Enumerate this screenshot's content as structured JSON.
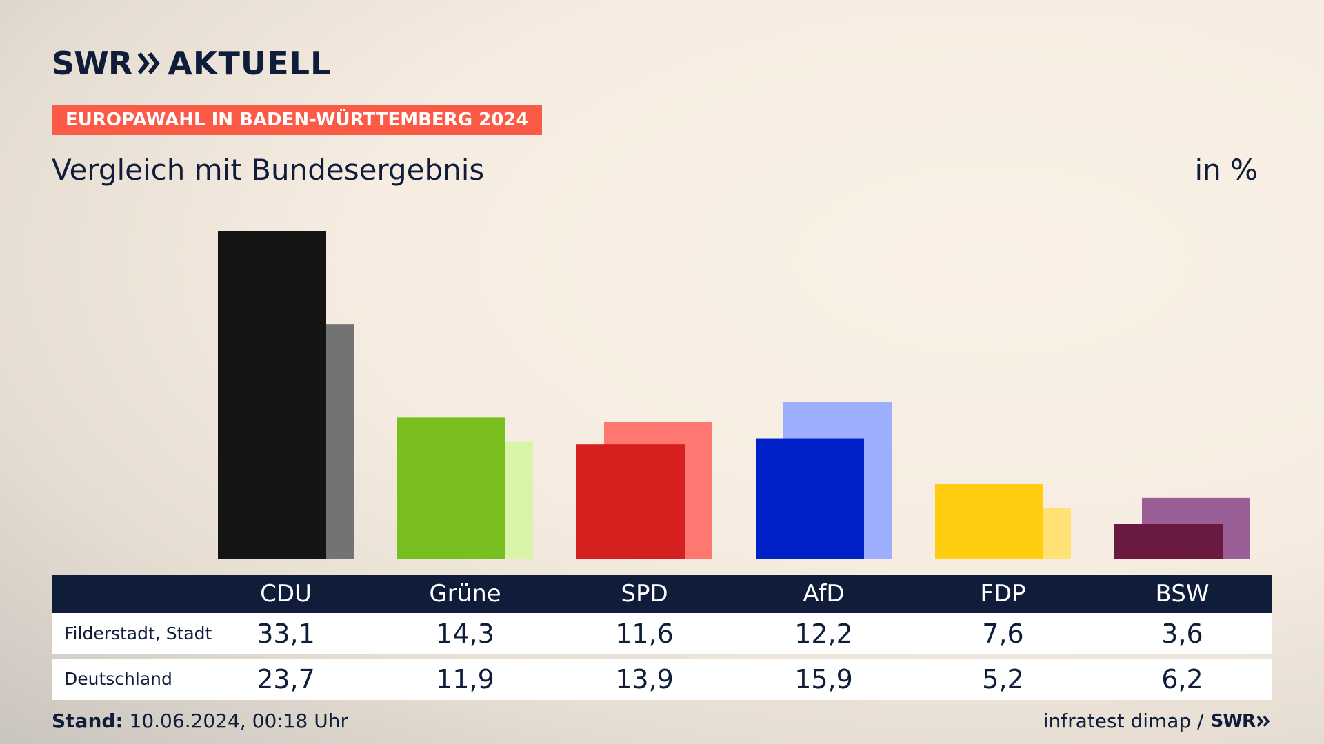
{
  "header": {
    "logo_swr": "SWR",
    "logo_aktuell": "AKTUELL",
    "badge": "EUROPAWAHL IN BADEN-WÜRTTEMBERG 2024",
    "subtitle": "Vergleich mit Bundesergebnis",
    "unit": "in %"
  },
  "table": {
    "row1_label": "Filderstadt, Stadt",
    "row2_label": "Deutschland"
  },
  "footer": {
    "stand_label": "Stand:",
    "stand_value": "10.06.2024, 00:18 Uhr",
    "source": "infratest dimap /",
    "source_logo": "SWR"
  },
  "chart_data": {
    "type": "bar",
    "categories": [
      "CDU",
      "Grüne",
      "SPD",
      "AfD",
      "FDP",
      "BSW"
    ],
    "series": [
      {
        "name": "Filderstadt, Stadt",
        "values": [
          33.1,
          14.3,
          11.6,
          12.2,
          7.6,
          3.6
        ],
        "labels": [
          "33,1",
          "14,3",
          "11,6",
          "12,2",
          "7,6",
          "3,6"
        ]
      },
      {
        "name": "Deutschland",
        "values": [
          23.7,
          11.9,
          13.9,
          15.9,
          5.2,
          6.2
        ],
        "labels": [
          "23,7",
          "11,9",
          "13,9",
          "15,9",
          "5,2",
          "6,2"
        ]
      }
    ],
    "colors_primary": [
      "#141414",
      "#78be1e",
      "#d61f1f",
      "#0020c8",
      "#ffcd0f",
      "#6a1a40"
    ],
    "colors_secondary": [
      "#737373",
      "#d7f4a9",
      "#ff7771",
      "#9daeff",
      "#ffe175",
      "#9b5f98"
    ],
    "ylim": [
      0,
      33.1
    ]
  }
}
